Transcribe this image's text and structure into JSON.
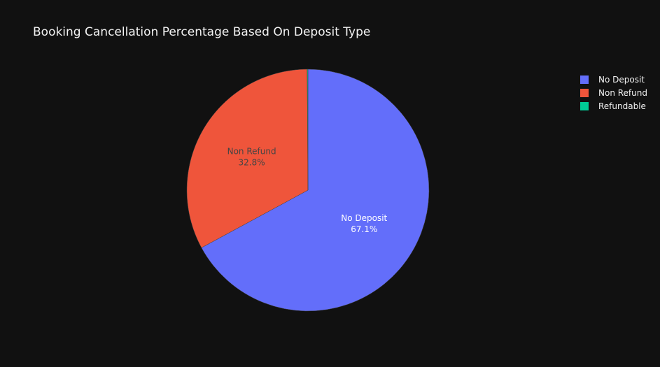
{
  "chart_data": {
    "type": "pie",
    "title": "Booking Cancellation Percentage Based On Deposit Type",
    "legend_position": "top-right",
    "slices": [
      {
        "label": "No Deposit",
        "value": 67.1,
        "text": "67.1%",
        "color": "#636efa",
        "text_color": "#ffffff",
        "show_text": true
      },
      {
        "label": "Non Refund",
        "value": 32.8,
        "text": "32.8%",
        "color": "#ef553b",
        "text_color": "#444444",
        "show_text": true
      },
      {
        "label": "Refundable",
        "value": 0.1,
        "text": "0.1%",
        "color": "#00cc96",
        "text_color": "#ffffff",
        "show_text": false
      }
    ]
  }
}
